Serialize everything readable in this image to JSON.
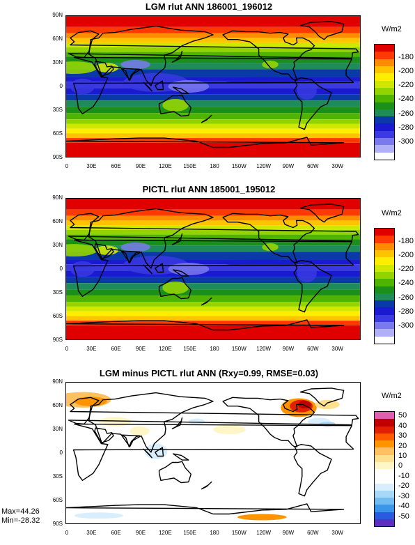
{
  "panels": [
    {
      "title": "LGM rlut ANN 186001_196012",
      "units": "W/m2",
      "colorbar_labels": [
        "-180",
        "-200",
        "-220",
        "-240",
        "-260",
        "-280",
        "-300"
      ],
      "colorbar_colors": [
        "#e00000",
        "#ff3a00",
        "#ff8c00",
        "#ffc400",
        "#ffee00",
        "#cfe800",
        "#93d400",
        "#4fb400",
        "#1a8f1a",
        "#1e8c5a",
        "#0a3aa8",
        "#1a1ad0",
        "#3a3ae0",
        "#7a7aee",
        "#b0b0f6",
        "#ffffff"
      ]
    },
    {
      "title": "PICTL rlut ANN 185001_195012",
      "units": "W/m2",
      "colorbar_labels": [
        "-180",
        "-200",
        "-220",
        "-240",
        "-260",
        "-280",
        "-300"
      ],
      "colorbar_colors": [
        "#e00000",
        "#ff3a00",
        "#ff8c00",
        "#ffc400",
        "#ffee00",
        "#cfe800",
        "#93d400",
        "#4fb400",
        "#1a8f1a",
        "#1e8c5a",
        "#0a3aa8",
        "#1a1ad0",
        "#3a3ae0",
        "#7a7aee",
        "#b0b0f6",
        "#ffffff"
      ]
    },
    {
      "title": "LGM minus PICTL rlut ANN (Rxy=0.99, RMSE=0.03)",
      "units": "W/m2",
      "colorbar_labels": [
        "50",
        "40",
        "30",
        "20",
        "10",
        "0",
        "-10",
        "-20",
        "-30",
        "-40",
        "-50"
      ],
      "colorbar_colors": [
        "#e060b0",
        "#c00000",
        "#e02000",
        "#ff5a00",
        "#ff9400",
        "#ffc060",
        "#ffe090",
        "#fff6c8",
        "#ffffff",
        "#ffffff",
        "#d8eefc",
        "#a8d8f8",
        "#70bcf0",
        "#3a96e8",
        "#2a5ae0",
        "#5a30c0"
      ],
      "max_label": "Max=44.26",
      "min_label": "Min=-28.32"
    }
  ],
  "lat_labels": [
    "90N",
    "60N",
    "30N",
    "0",
    "30S",
    "60S",
    "90S"
  ],
  "lon_labels": [
    "0",
    "30E",
    "60E",
    "90E",
    "120E",
    "150E",
    "180",
    "150W",
    "120W",
    "90W",
    "60W",
    "30W"
  ]
}
